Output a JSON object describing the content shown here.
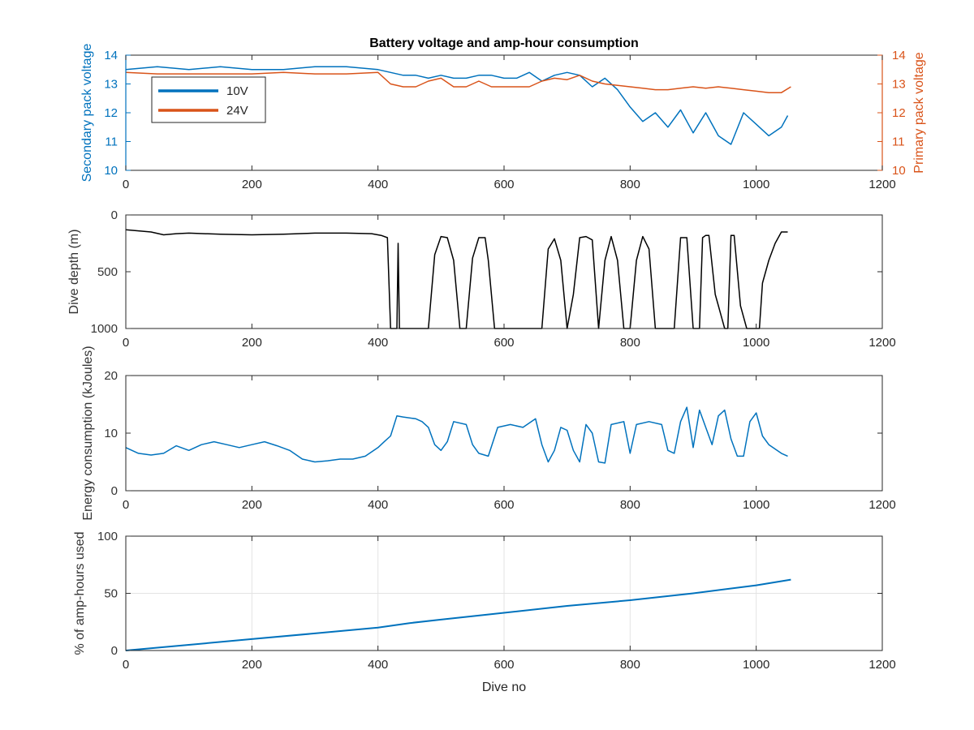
{
  "chart_data": [
    {
      "type": "line",
      "title": "Battery voltage and amp-hour consumption",
      "xlabel": "",
      "xlim": [
        0,
        1200
      ],
      "xticks": [
        0,
        200,
        400,
        600,
        800,
        1000,
        1200
      ],
      "ylabel": "Secondary pack voltage",
      "ylim": [
        10,
        14
      ],
      "yticks": [
        10,
        11,
        12,
        13,
        14
      ],
      "ylabel_right": "Primary pack voltage",
      "ylim_right": [
        10,
        14
      ],
      "yticks_right": [
        10,
        11,
        12,
        13,
        14
      ],
      "grid": false,
      "legend_position": "upper-left",
      "series": [
        {
          "name": "10V",
          "color": "#0072BD",
          "axis": "left",
          "points": [
            [
              0,
              13.5
            ],
            [
              50,
              13.6
            ],
            [
              100,
              13.5
            ],
            [
              150,
              13.6
            ],
            [
              200,
              13.5
            ],
            [
              250,
              13.5
            ],
            [
              300,
              13.6
            ],
            [
              350,
              13.6
            ],
            [
              400,
              13.5
            ],
            [
              420,
              13.4
            ],
            [
              440,
              13.3
            ],
            [
              460,
              13.3
            ],
            [
              480,
              13.2
            ],
            [
              500,
              13.3
            ],
            [
              520,
              13.2
            ],
            [
              540,
              13.2
            ],
            [
              560,
              13.3
            ],
            [
              580,
              13.3
            ],
            [
              600,
              13.2
            ],
            [
              620,
              13.2
            ],
            [
              640,
              13.4
            ],
            [
              660,
              13.1
            ],
            [
              680,
              13.3
            ],
            [
              700,
              13.4
            ],
            [
              720,
              13.3
            ],
            [
              740,
              12.9
            ],
            [
              760,
              13.2
            ],
            [
              780,
              12.8
            ],
            [
              800,
              12.2
            ],
            [
              820,
              11.7
            ],
            [
              840,
              12.0
            ],
            [
              860,
              11.5
            ],
            [
              880,
              12.1
            ],
            [
              900,
              11.3
            ],
            [
              920,
              12.0
            ],
            [
              940,
              11.2
            ],
            [
              960,
              10.9
            ],
            [
              980,
              12.0
            ],
            [
              1000,
              11.6
            ],
            [
              1020,
              11.2
            ],
            [
              1040,
              11.5
            ],
            [
              1050,
              11.9
            ]
          ]
        },
        {
          "name": "24V",
          "color": "#D95319",
          "axis": "right",
          "points": [
            [
              0,
              13.4
            ],
            [
              50,
              13.35
            ],
            [
              100,
              13.35
            ],
            [
              150,
              13.35
            ],
            [
              200,
              13.35
            ],
            [
              250,
              13.4
            ],
            [
              300,
              13.35
            ],
            [
              350,
              13.35
            ],
            [
              400,
              13.4
            ],
            [
              420,
              13.0
            ],
            [
              440,
              12.9
            ],
            [
              460,
              12.9
            ],
            [
              480,
              13.1
            ],
            [
              500,
              13.2
            ],
            [
              520,
              12.9
            ],
            [
              540,
              12.9
            ],
            [
              560,
              13.1
            ],
            [
              580,
              12.9
            ],
            [
              600,
              12.9
            ],
            [
              620,
              12.9
            ],
            [
              640,
              12.9
            ],
            [
              660,
              13.1
            ],
            [
              680,
              13.2
            ],
            [
              700,
              13.15
            ],
            [
              720,
              13.3
            ],
            [
              740,
              13.1
            ],
            [
              760,
              13.0
            ],
            [
              780,
              12.95
            ],
            [
              800,
              12.9
            ],
            [
              820,
              12.85
            ],
            [
              840,
              12.8
            ],
            [
              860,
              12.8
            ],
            [
              880,
              12.85
            ],
            [
              900,
              12.9
            ],
            [
              920,
              12.85
            ],
            [
              940,
              12.9
            ],
            [
              960,
              12.85
            ],
            [
              980,
              12.8
            ],
            [
              1000,
              12.75
            ],
            [
              1020,
              12.7
            ],
            [
              1040,
              12.7
            ],
            [
              1055,
              12.9
            ]
          ]
        }
      ]
    },
    {
      "type": "line",
      "title": "",
      "xlabel": "",
      "xlim": [
        0,
        1200
      ],
      "xticks": [
        0,
        200,
        400,
        600,
        800,
        1000,
        1200
      ],
      "ylabel": "Dive depth (m)",
      "ylim": [
        0,
        1000
      ],
      "yticks": [
        0,
        500,
        1000
      ],
      "reverse_y": true,
      "grid": false,
      "series": [
        {
          "name": "",
          "color": "#000000",
          "points": [
            [
              0,
              130
            ],
            [
              20,
              140
            ],
            [
              40,
              150
            ],
            [
              60,
              175
            ],
            [
              80,
              165
            ],
            [
              100,
              160
            ],
            [
              150,
              170
            ],
            [
              200,
              175
            ],
            [
              250,
              170
            ],
            [
              300,
              160
            ],
            [
              350,
              160
            ],
            [
              390,
              165
            ],
            [
              405,
              180
            ],
            [
              415,
              200
            ],
            [
              420,
              1000
            ],
            [
              430,
              1000
            ],
            [
              432,
              250
            ],
            [
              434,
              1000
            ],
            [
              480,
              1000
            ],
            [
              490,
              350
            ],
            [
              500,
              190
            ],
            [
              510,
              200
            ],
            [
              520,
              400
            ],
            [
              530,
              1000
            ],
            [
              540,
              1000
            ],
            [
              550,
              380
            ],
            [
              560,
              200
            ],
            [
              570,
              200
            ],
            [
              575,
              400
            ],
            [
              585,
              1000
            ],
            [
              600,
              1000
            ],
            [
              650,
              1000
            ],
            [
              660,
              1000
            ],
            [
              670,
              300
            ],
            [
              680,
              210
            ],
            [
              690,
              400
            ],
            [
              700,
              1000
            ],
            [
              710,
              700
            ],
            [
              720,
              200
            ],
            [
              730,
              190
            ],
            [
              740,
              220
            ],
            [
              750,
              1000
            ],
            [
              760,
              400
            ],
            [
              770,
              190
            ],
            [
              780,
              400
            ],
            [
              790,
              1000
            ],
            [
              800,
              1000
            ],
            [
              810,
              400
            ],
            [
              820,
              190
            ],
            [
              830,
              300
            ],
            [
              840,
              1000
            ],
            [
              870,
              1000
            ],
            [
              880,
              200
            ],
            [
              890,
              200
            ],
            [
              900,
              1000
            ],
            [
              910,
              1000
            ],
            [
              915,
              200
            ],
            [
              920,
              180
            ],
            [
              925,
              180
            ],
            [
              935,
              700
            ],
            [
              940,
              800
            ],
            [
              950,
              1000
            ],
            [
              955,
              1000
            ],
            [
              960,
              180
            ],
            [
              965,
              180
            ],
            [
              975,
              800
            ],
            [
              985,
              1000
            ],
            [
              990,
              1000
            ],
            [
              1005,
              1000
            ],
            [
              1010,
              600
            ],
            [
              1020,
              400
            ],
            [
              1030,
              250
            ],
            [
              1040,
              150
            ],
            [
              1050,
              150
            ]
          ]
        }
      ]
    },
    {
      "type": "line",
      "title": "",
      "xlabel": "",
      "xlim": [
        0,
        1200
      ],
      "xticks": [
        0,
        200,
        400,
        600,
        800,
        1000,
        1200
      ],
      "ylabel": "Energy consumption (kJoules)",
      "ylim": [
        0,
        20
      ],
      "yticks": [
        0,
        10,
        20
      ],
      "grid": false,
      "series": [
        {
          "name": "",
          "color": "#0072BD",
          "points": [
            [
              0,
              7.5
            ],
            [
              20,
              6.5
            ],
            [
              40,
              6.2
            ],
            [
              60,
              6.5
            ],
            [
              80,
              7.8
            ],
            [
              100,
              7.0
            ],
            [
              120,
              8.0
            ],
            [
              140,
              8.5
            ],
            [
              160,
              8.0
            ],
            [
              180,
              7.5
            ],
            [
              200,
              8.0
            ],
            [
              220,
              8.5
            ],
            [
              240,
              7.8
            ],
            [
              260,
              7.0
            ],
            [
              280,
              5.5
            ],
            [
              300,
              5.0
            ],
            [
              320,
              5.2
            ],
            [
              340,
              5.5
            ],
            [
              360,
              5.5
            ],
            [
              380,
              6.0
            ],
            [
              400,
              7.5
            ],
            [
              410,
              8.5
            ],
            [
              420,
              9.5
            ],
            [
              430,
              13.0
            ],
            [
              440,
              12.8
            ],
            [
              460,
              12.5
            ],
            [
              470,
              12.0
            ],
            [
              480,
              11.0
            ],
            [
              490,
              8.0
            ],
            [
              500,
              7.0
            ],
            [
              510,
              8.5
            ],
            [
              520,
              12.0
            ],
            [
              540,
              11.5
            ],
            [
              550,
              8.0
            ],
            [
              560,
              6.5
            ],
            [
              575,
              6.0
            ],
            [
              590,
              11.0
            ],
            [
              610,
              11.5
            ],
            [
              630,
              11.0
            ],
            [
              650,
              12.5
            ],
            [
              660,
              8.0
            ],
            [
              670,
              5.0
            ],
            [
              680,
              7.0
            ],
            [
              690,
              11.0
            ],
            [
              700,
              10.5
            ],
            [
              710,
              7.0
            ],
            [
              720,
              5.0
            ],
            [
              730,
              11.5
            ],
            [
              740,
              10.0
            ],
            [
              750,
              5.0
            ],
            [
              760,
              4.8
            ],
            [
              770,
              11.5
            ],
            [
              790,
              12.0
            ],
            [
              800,
              6.5
            ],
            [
              810,
              11.5
            ],
            [
              830,
              12.0
            ],
            [
              850,
              11.5
            ],
            [
              860,
              7.0
            ],
            [
              870,
              6.5
            ],
            [
              880,
              12.0
            ],
            [
              890,
              14.5
            ],
            [
              900,
              7.5
            ],
            [
              910,
              14.0
            ],
            [
              920,
              11.0
            ],
            [
              930,
              8.0
            ],
            [
              940,
              13.0
            ],
            [
              950,
              14.0
            ],
            [
              960,
              9.0
            ],
            [
              970,
              6.0
            ],
            [
              980,
              6.0
            ],
            [
              990,
              12.0
            ],
            [
              1000,
              13.5
            ],
            [
              1010,
              9.5
            ],
            [
              1020,
              8.0
            ],
            [
              1040,
              6.5
            ],
            [
              1050,
              6.0
            ]
          ]
        }
      ]
    },
    {
      "type": "line",
      "title": "",
      "xlabel": "Dive no",
      "xlim": [
        0,
        1200
      ],
      "xticks": [
        0,
        200,
        400,
        600,
        800,
        1000,
        1200
      ],
      "ylabel": "% of amp-hours used",
      "ylim": [
        0,
        100
      ],
      "yticks": [
        0,
        50,
        100
      ],
      "grid": true,
      "series": [
        {
          "name": "",
          "color": "#0072BD",
          "points": [
            [
              0,
              0
            ],
            [
              100,
              5
            ],
            [
              200,
              10
            ],
            [
              300,
              15
            ],
            [
              400,
              20
            ],
            [
              450,
              24
            ],
            [
              500,
              27
            ],
            [
              600,
              33
            ],
            [
              700,
              39
            ],
            [
              800,
              44
            ],
            [
              900,
              50
            ],
            [
              1000,
              57
            ],
            [
              1055,
              62
            ]
          ]
        }
      ]
    }
  ]
}
